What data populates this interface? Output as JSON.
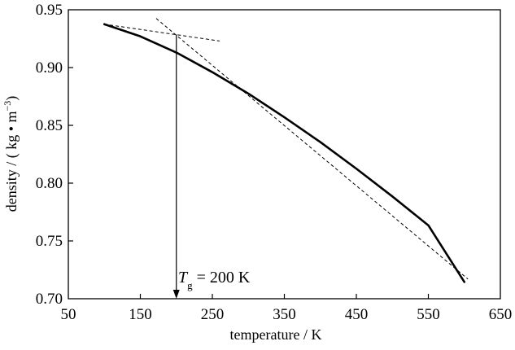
{
  "chart_data": {
    "type": "line",
    "title": "",
    "xlabel": "temperature / K",
    "ylabel": {
      "prefix": "density / ( kg • m",
      "exponent": "−3",
      "suffix": ")"
    },
    "xlim": [
      50,
      650
    ],
    "ylim": [
      0.7,
      0.95
    ],
    "xticks": [
      "50",
      "150",
      "250",
      "350",
      "450",
      "550",
      "650"
    ],
    "yticks": [
      "0.70",
      "0.75",
      "0.80",
      "0.85",
      "0.90",
      "0.95"
    ],
    "grid": false,
    "legend": "none",
    "series": [
      {
        "style": "solid",
        "x": [
          100,
          150,
          200,
          250,
          300,
          350,
          400,
          450,
          500,
          550,
          600
        ],
        "y": [
          0.9375,
          0.927,
          0.913,
          0.896,
          0.8775,
          0.857,
          0.8355,
          0.8125,
          0.7885,
          0.7635,
          0.7145
        ]
      }
    ],
    "tangents": [
      {
        "style": "dashed",
        "x": [
          100,
          260
        ],
        "y": [
          0.9375,
          0.923
        ]
      },
      {
        "style": "dashed",
        "x": [
          172,
          605
        ],
        "y": [
          0.9425,
          0.717
        ]
      }
    ],
    "annotation": {
      "symbol": "T",
      "subscript": "g",
      "text": " = 200  K",
      "x": 200,
      "arrow_from_y": 0.9285,
      "arrow_to_y": 0.7
    }
  }
}
